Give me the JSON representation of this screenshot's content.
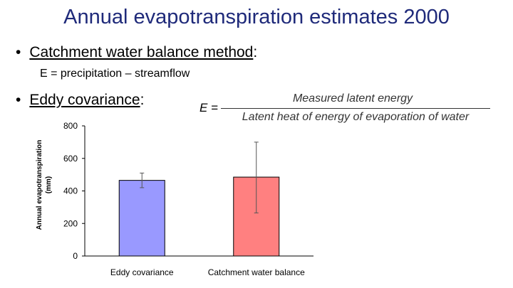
{
  "slide": {
    "title": "Annual evapotranspiration estimates 2000",
    "bullet1": {
      "marker": "•",
      "label": "Catchment water balance method",
      "suffix": ":"
    },
    "bullet1_sub": "E = precipitation – streamflow",
    "bullet2": {
      "marker": "•",
      "label": "Eddy covariance",
      "suffix": ":"
    },
    "formula": {
      "lhs": "E =",
      "numerator": "Measured latent energy",
      "denominator": "Latent heat of energy of evaporation of water"
    }
  },
  "chart_data": {
    "type": "bar",
    "ylabel_line1": "Annual evapotranspiration",
    "ylabel_line2": "(mm)",
    "xlabel": "",
    "ylim": [
      0,
      800
    ],
    "yticks": [
      0,
      200,
      400,
      600,
      800
    ],
    "grid": false,
    "categories": [
      "Eddy covariance",
      "Catchment water balance"
    ],
    "values": [
      465,
      485
    ],
    "error_low": [
      420,
      265
    ],
    "error_high": [
      510,
      700
    ],
    "colors": [
      "#9999ff",
      "#ff8080"
    ]
  }
}
